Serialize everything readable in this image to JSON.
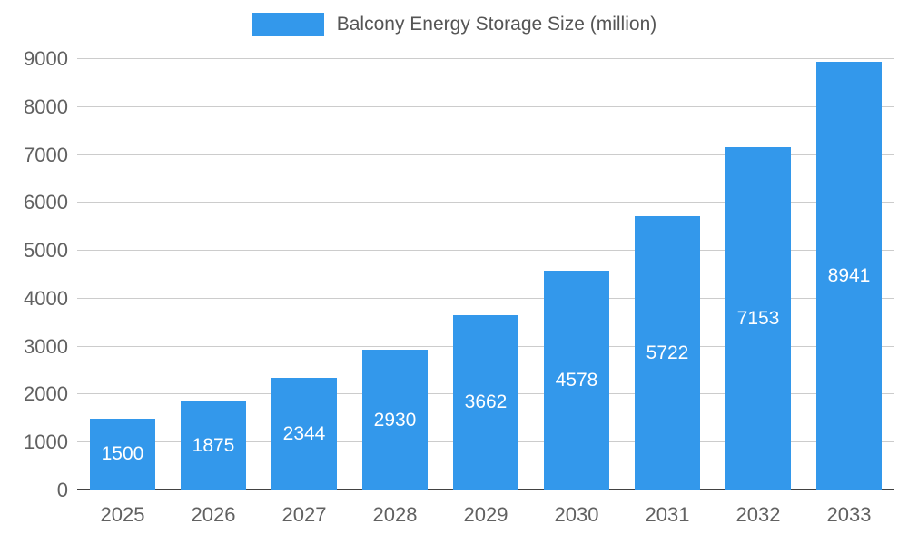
{
  "legend": {
    "label": "Balcony Energy Storage Size (million)"
  },
  "chart_data": {
    "type": "bar",
    "title": "Balcony Energy Storage Size (million)",
    "categories": [
      "2025",
      "2026",
      "2027",
      "2028",
      "2029",
      "2030",
      "2031",
      "2032",
      "2033"
    ],
    "values": [
      1500,
      1875,
      2344,
      2930,
      3662,
      4578,
      5722,
      7153,
      8941
    ],
    "xlabel": "",
    "ylabel": "",
    "ylim": [
      0,
      9000
    ],
    "ytick_step": 1000,
    "grid": true,
    "legend_position": "top",
    "bar_color": "#3398EB",
    "value_label_color": "#FFFFFF",
    "axis_text_color": "#616161",
    "gridline_color": "#CCCCCC",
    "baseline_color": "#424242",
    "background": "#FFFFFF"
  }
}
